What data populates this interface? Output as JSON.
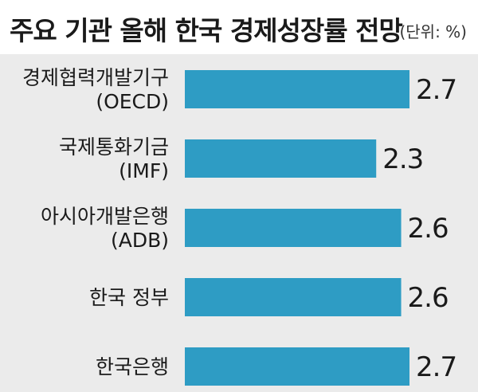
{
  "header": {
    "title": "주요 기관 올해 한국 경제성장률 전망",
    "unit": "(단위: %)"
  },
  "colors": {
    "bar": "#2e9cc4",
    "background": "#ebebeb"
  },
  "chart_data": {
    "type": "bar",
    "orientation": "horizontal",
    "title": "주요 기관 올해 한국 경제성장률 전망",
    "unit": "(단위: %)",
    "categories": [
      [
        "경제협력개발기구",
        "(OECD)"
      ],
      [
        "국제통화기금",
        "(IMF)"
      ],
      [
        "아시아개발은행",
        "(ADB)"
      ],
      [
        "한국 정부"
      ],
      [
        "한국은행"
      ]
    ],
    "values": [
      2.7,
      2.3,
      2.6,
      2.6,
      2.7
    ],
    "value_labels": [
      "2.7",
      "2.3",
      "2.6",
      "2.6",
      "2.7"
    ],
    "xlim": [
      0,
      2.7
    ],
    "grid": false,
    "legend": "none"
  }
}
